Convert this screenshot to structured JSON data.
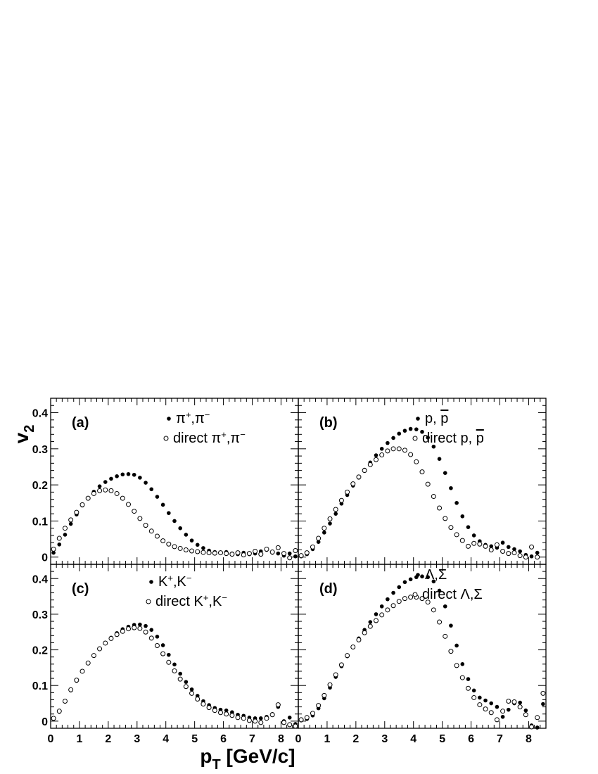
{
  "figure": {
    "xlabel": "p",
    "xlabel_sub": "T",
    "xlabel_rest": " [GeV/c]",
    "ylabel": "v",
    "ylabel_sub": "2"
  },
  "chart_data": [
    {
      "type": "scatter",
      "panel_label": "(a)",
      "xlim": [
        0,
        8.6
      ],
      "ylim": [
        -0.02,
        0.44
      ],
      "xticks": [
        0,
        1,
        2,
        3,
        4,
        5,
        6,
        7,
        8
      ],
      "yticks": [
        0,
        0.1,
        0.2,
        0.3,
        0.4
      ],
      "ytick_labels": [
        "0",
        "0.1",
        "0.2",
        "0.3",
        "0.4"
      ],
      "legend_position": "top-right",
      "series": [
        {
          "name": "π⁺,π⁻",
          "marker": "filled-circle",
          "x": [
            0.1,
            0.3,
            0.5,
            0.7,
            0.9,
            1.1,
            1.3,
            1.5,
            1.7,
            1.9,
            2.1,
            2.3,
            2.5,
            2.7,
            2.9,
            3.1,
            3.3,
            3.5,
            3.7,
            3.9,
            4.1,
            4.3,
            4.5,
            4.7,
            4.9,
            5.1,
            5.3,
            5.5,
            5.7,
            5.9,
            6.1,
            6.3,
            6.5,
            6.7,
            6.9,
            7.1,
            7.3,
            7.5,
            7.7,
            7.9,
            8.1,
            8.3,
            8.5
          ],
          "y": [
            0.012,
            0.035,
            0.062,
            0.092,
            0.118,
            0.143,
            0.163,
            0.181,
            0.196,
            0.208,
            0.217,
            0.224,
            0.229,
            0.23,
            0.228,
            0.22,
            0.206,
            0.188,
            0.167,
            0.145,
            0.122,
            0.1,
            0.08,
            0.062,
            0.046,
            0.034,
            0.025,
            0.018,
            0.014,
            0.013,
            0.014,
            0.01,
            0.008,
            0.012,
            0.008,
            0.01,
            0.016,
            0.02,
            0.012,
            0.01,
            0.004,
            0.01,
            0.002
          ]
        },
        {
          "name": "direct π⁺,π⁻",
          "marker": "open-circle",
          "x": [
            0.1,
            0.3,
            0.5,
            0.7,
            0.9,
            1.1,
            1.3,
            1.5,
            1.7,
            1.9,
            2.1,
            2.3,
            2.5,
            2.7,
            2.9,
            3.1,
            3.3,
            3.5,
            3.7,
            3.9,
            4.1,
            4.3,
            4.5,
            4.7,
            4.9,
            5.1,
            5.3,
            5.5,
            5.7,
            5.9,
            6.1,
            6.3,
            6.5,
            6.7,
            6.9,
            7.1,
            7.3,
            7.5,
            7.7,
            7.9,
            8.1,
            8.3,
            8.5
          ],
          "y": [
            0.022,
            0.052,
            0.08,
            0.103,
            0.124,
            0.145,
            0.163,
            0.176,
            0.184,
            0.186,
            0.184,
            0.176,
            0.163,
            0.146,
            0.127,
            0.107,
            0.088,
            0.072,
            0.058,
            0.045,
            0.036,
            0.029,
            0.024,
            0.02,
            0.017,
            0.015,
            0.013,
            0.012,
            0.011,
            0.012,
            0.01,
            0.008,
            0.012,
            0.006,
            0.01,
            0.016,
            0.008,
            0.022,
            0.014,
            0.026,
            0.01,
            -0.002,
            0.018
          ]
        }
      ]
    },
    {
      "type": "scatter",
      "panel_label": "(b)",
      "xlim": [
        0,
        8.6
      ],
      "ylim": [
        -0.02,
        0.44
      ],
      "xticks": [
        0,
        1,
        2,
        3,
        4,
        5,
        6,
        7,
        8
      ],
      "yticks": [
        0,
        0.1,
        0.2,
        0.3,
        0.4
      ],
      "ytick_labels": [
        "",
        "",
        "",
        "",
        ""
      ],
      "legend_position": "top-right",
      "series": [
        {
          "name": "p, p̄",
          "marker": "filled-circle",
          "x": [
            0.1,
            0.3,
            0.5,
            0.7,
            0.9,
            1.1,
            1.3,
            1.5,
            1.7,
            1.9,
            2.1,
            2.3,
            2.5,
            2.7,
            2.9,
            3.1,
            3.3,
            3.5,
            3.7,
            3.9,
            4.1,
            4.3,
            4.5,
            4.7,
            4.9,
            5.1,
            5.3,
            5.5,
            5.7,
            5.9,
            6.1,
            6.3,
            6.5,
            6.7,
            6.9,
            7.1,
            7.3,
            7.5,
            7.7,
            7.9,
            8.1,
            8.3
          ],
          "y": [
            0.002,
            0.008,
            0.022,
            0.042,
            0.068,
            0.093,
            0.12,
            0.148,
            0.172,
            0.198,
            0.22,
            0.242,
            0.262,
            0.282,
            0.3,
            0.316,
            0.33,
            0.342,
            0.35,
            0.355,
            0.354,
            0.347,
            0.331,
            0.306,
            0.272,
            0.233,
            0.191,
            0.15,
            0.113,
            0.083,
            0.06,
            0.044,
            0.034,
            0.03,
            0.026,
            0.04,
            0.028,
            0.022,
            0.016,
            0.006,
            0.002,
            0.012
          ]
        },
        {
          "name": "direct p, p̄",
          "marker": "open-circle",
          "x": [
            0.1,
            0.3,
            0.5,
            0.7,
            0.9,
            1.1,
            1.3,
            1.5,
            1.7,
            1.9,
            2.1,
            2.3,
            2.5,
            2.7,
            2.9,
            3.1,
            3.3,
            3.5,
            3.7,
            3.9,
            4.1,
            4.3,
            4.5,
            4.7,
            4.9,
            5.1,
            5.3,
            5.5,
            5.7,
            5.9,
            6.1,
            6.3,
            6.5,
            6.7,
            6.9,
            7.1,
            7.3,
            7.5,
            7.7,
            7.9,
            8.1,
            8.3
          ],
          "y": [
            0.004,
            0.012,
            0.028,
            0.052,
            0.08,
            0.106,
            0.132,
            0.157,
            0.18,
            0.203,
            0.222,
            0.24,
            0.256,
            0.27,
            0.283,
            0.294,
            0.3,
            0.3,
            0.296,
            0.284,
            0.264,
            0.236,
            0.202,
            0.168,
            0.136,
            0.107,
            0.082,
            0.062,
            0.046,
            0.03,
            0.038,
            0.036,
            0.03,
            0.02,
            0.034,
            0.016,
            0.01,
            0.012,
            0.004,
            0.0,
            0.028,
            0.0
          ]
        }
      ]
    },
    {
      "type": "scatter",
      "panel_label": "(c)",
      "xlim": [
        0,
        8.6
      ],
      "ylim": [
        -0.02,
        0.44
      ],
      "xticks": [
        0,
        1,
        2,
        3,
        4,
        5,
        6,
        7,
        8
      ],
      "xtick_labels": [
        "0",
        "1",
        "2",
        "3",
        "4",
        "5",
        "6",
        "7",
        "8"
      ],
      "yticks": [
        0,
        0.1,
        0.2,
        0.3,
        0.4
      ],
      "ytick_labels": [
        "0",
        "0.1",
        "0.2",
        "0.3",
        "0.4"
      ],
      "legend_position": "top-right",
      "series": [
        {
          "name": "K⁺,K⁻",
          "marker": "filled-circle",
          "x": [
            0.1,
            0.3,
            0.5,
            0.7,
            0.9,
            1.1,
            1.3,
            1.5,
            1.7,
            1.9,
            2.1,
            2.3,
            2.5,
            2.7,
            2.9,
            3.1,
            3.3,
            3.5,
            3.7,
            3.9,
            4.1,
            4.3,
            4.5,
            4.7,
            4.9,
            5.1,
            5.3,
            5.5,
            5.7,
            5.9,
            6.1,
            6.3,
            6.5,
            6.7,
            6.9,
            7.1,
            7.3,
            7.5,
            7.7,
            7.9,
            8.1,
            8.3,
            8.5
          ],
          "y": [
            0.006,
            0.026,
            0.055,
            0.086,
            0.113,
            0.14,
            0.162,
            0.183,
            0.203,
            0.22,
            0.234,
            0.247,
            0.258,
            0.265,
            0.27,
            0.271,
            0.267,
            0.256,
            0.237,
            0.213,
            0.186,
            0.159,
            0.133,
            0.11,
            0.089,
            0.071,
            0.056,
            0.045,
            0.037,
            0.032,
            0.03,
            0.025,
            0.018,
            0.015,
            0.01,
            0.008,
            0.008,
            0.012,
            0.02,
            0.04,
            0.0,
            0.01,
            -0.008
          ]
        },
        {
          "name": "direct K⁺,K⁻",
          "marker": "open-circle",
          "x": [
            0.1,
            0.3,
            0.5,
            0.7,
            0.9,
            1.1,
            1.3,
            1.5,
            1.7,
            1.9,
            2.1,
            2.3,
            2.5,
            2.7,
            2.9,
            3.1,
            3.3,
            3.5,
            3.7,
            3.9,
            4.1,
            4.3,
            4.5,
            4.7,
            4.9,
            5.1,
            5.3,
            5.5,
            5.7,
            5.9,
            6.1,
            6.3,
            6.5,
            6.7,
            6.9,
            7.1,
            7.3,
            7.5,
            7.7,
            7.9,
            8.1,
            8.3,
            8.5
          ],
          "y": [
            0.008,
            0.028,
            0.056,
            0.088,
            0.115,
            0.14,
            0.163,
            0.184,
            0.203,
            0.219,
            0.232,
            0.243,
            0.252,
            0.259,
            0.262,
            0.26,
            0.25,
            0.233,
            0.212,
            0.189,
            0.165,
            0.141,
            0.118,
            0.097,
            0.078,
            0.062,
            0.048,
            0.038,
            0.03,
            0.024,
            0.02,
            0.016,
            0.01,
            0.008,
            0.002,
            0.0,
            -0.004,
            0.008,
            0.018,
            0.046,
            -0.004,
            -0.01,
            -0.014
          ]
        }
      ]
    },
    {
      "type": "scatter",
      "panel_label": "(d)",
      "xlim": [
        0,
        8.6
      ],
      "ylim": [
        -0.02,
        0.44
      ],
      "xticks": [
        0,
        1,
        2,
        3,
        4,
        5,
        6,
        7,
        8
      ],
      "xtick_labels": [
        "0",
        "1",
        "2",
        "3",
        "4",
        "5",
        "6",
        "7",
        "8"
      ],
      "yticks": [
        0,
        0.1,
        0.2,
        0.3,
        0.4
      ],
      "ytick_labels": [
        "",
        "",
        "",
        "",
        ""
      ],
      "legend_position": "top-right",
      "series": [
        {
          "name": "Λ,Σ",
          "marker": "filled-circle",
          "x": [
            0.1,
            0.3,
            0.5,
            0.7,
            0.9,
            1.1,
            1.3,
            1.5,
            1.7,
            1.9,
            2.1,
            2.3,
            2.5,
            2.7,
            2.9,
            3.1,
            3.3,
            3.5,
            3.7,
            3.9,
            4.1,
            4.3,
            4.5,
            4.7,
            4.9,
            5.1,
            5.3,
            5.5,
            5.7,
            5.9,
            6.1,
            6.3,
            6.5,
            6.7,
            6.9,
            7.1,
            7.3,
            7.5,
            7.7,
            7.9,
            8.1,
            8.3,
            8.5
          ],
          "y": [
            0.002,
            0.006,
            0.016,
            0.036,
            0.064,
            0.094,
            0.124,
            0.154,
            0.182,
            0.208,
            0.232,
            0.256,
            0.278,
            0.3,
            0.322,
            0.342,
            0.36,
            0.376,
            0.39,
            0.398,
            0.404,
            0.406,
            0.404,
            0.392,
            0.366,
            0.322,
            0.268,
            0.212,
            0.16,
            0.118,
            0.086,
            0.066,
            0.058,
            0.05,
            0.04,
            0.012,
            0.032,
            0.05,
            0.052,
            0.03,
            -0.012,
            -0.018,
            0.048
          ]
        },
        {
          "name": "direct Λ,Σ",
          "marker": "open-circle",
          "x": [
            0.1,
            0.3,
            0.5,
            0.7,
            0.9,
            1.1,
            1.3,
            1.5,
            1.7,
            1.9,
            2.1,
            2.3,
            2.5,
            2.7,
            2.9,
            3.1,
            3.3,
            3.5,
            3.7,
            3.9,
            4.1,
            4.3,
            4.5,
            4.7,
            4.9,
            5.1,
            5.3,
            5.5,
            5.7,
            5.9,
            6.1,
            6.3,
            6.5,
            6.7,
            6.9,
            7.1,
            7.3,
            7.5,
            7.7,
            7.9,
            8.1,
            8.3,
            8.5
          ],
          "y": [
            0.004,
            0.01,
            0.022,
            0.044,
            0.072,
            0.102,
            0.13,
            0.158,
            0.184,
            0.208,
            0.228,
            0.248,
            0.266,
            0.282,
            0.298,
            0.312,
            0.324,
            0.336,
            0.344,
            0.348,
            0.348,
            0.344,
            0.334,
            0.312,
            0.278,
            0.238,
            0.196,
            0.156,
            0.122,
            0.092,
            0.066,
            0.046,
            0.034,
            0.024,
            0.004,
            0.028,
            0.056,
            0.054,
            0.04,
            0.018,
            -0.016,
            0.01,
            0.078
          ]
        }
      ]
    }
  ]
}
